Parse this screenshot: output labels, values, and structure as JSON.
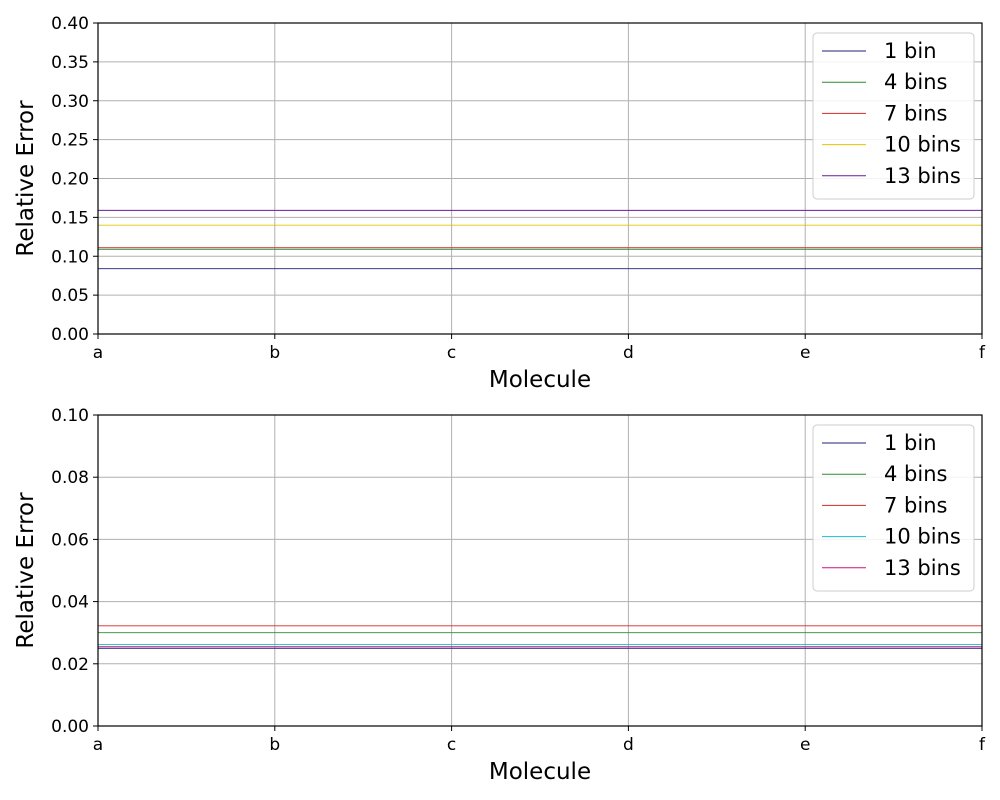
{
  "chart_data": [
    {
      "type": "line",
      "title": "",
      "xlabel": "Molecule",
      "ylabel": "Relative Error",
      "categories": [
        "a",
        "b",
        "c",
        "d",
        "e",
        "f"
      ],
      "ylim": [
        0,
        0.4
      ],
      "yticks": [
        "0.00",
        "0.05",
        "0.10",
        "0.15",
        "0.20",
        "0.25",
        "0.30",
        "0.35",
        "0.40"
      ],
      "grid": true,
      "legend_position": "top-right",
      "series": [
        {
          "name": "1 bin",
          "color": "#1f1f7a",
          "values": [
            0.084,
            0.084,
            0.084,
            0.084,
            0.084,
            0.084
          ]
        },
        {
          "name": "4 bins",
          "color": "#2e8b2e",
          "values": [
            0.109,
            0.109,
            0.109,
            0.109,
            0.109,
            0.109
          ]
        },
        {
          "name": "7 bins",
          "color": "#d62728",
          "values": [
            0.111,
            0.111,
            0.111,
            0.111,
            0.111,
            0.111
          ]
        },
        {
          "name": "10 bins",
          "color": "#e6c200",
          "values": [
            0.14,
            0.14,
            0.14,
            0.14,
            0.14,
            0.14
          ]
        },
        {
          "name": "13 bins",
          "color": "#6a1b9a",
          "values": [
            0.159,
            0.159,
            0.159,
            0.159,
            0.159,
            0.159
          ]
        }
      ]
    },
    {
      "type": "line",
      "title": "",
      "xlabel": "Molecule",
      "ylabel": "Relative Error",
      "categories": [
        "a",
        "b",
        "c",
        "d",
        "e",
        "f"
      ],
      "ylim": [
        0,
        0.1
      ],
      "yticks": [
        "0.00",
        "0.02",
        "0.04",
        "0.06",
        "0.08",
        "0.10"
      ],
      "grid": true,
      "legend_position": "top-right",
      "series": [
        {
          "name": "1 bin",
          "color": "#1f1f7a",
          "values": [
            0.025,
            0.025,
            0.025,
            0.025,
            0.025,
            0.025
          ]
        },
        {
          "name": "4 bins",
          "color": "#2e8b2e",
          "values": [
            0.03,
            0.03,
            0.03,
            0.03,
            0.03,
            0.03
          ]
        },
        {
          "name": "7 bins",
          "color": "#d62728",
          "values": [
            0.0322,
            0.0322,
            0.0322,
            0.0322,
            0.0322,
            0.0322
          ]
        },
        {
          "name": "10 bins",
          "color": "#17becf",
          "values": [
            0.0262,
            0.0262,
            0.0262,
            0.0262,
            0.0262,
            0.0262
          ]
        },
        {
          "name": "13 bins",
          "color": "#c71585",
          "values": [
            0.0255,
            0.0255,
            0.0255,
            0.0255,
            0.0255,
            0.0255
          ]
        }
      ]
    }
  ]
}
